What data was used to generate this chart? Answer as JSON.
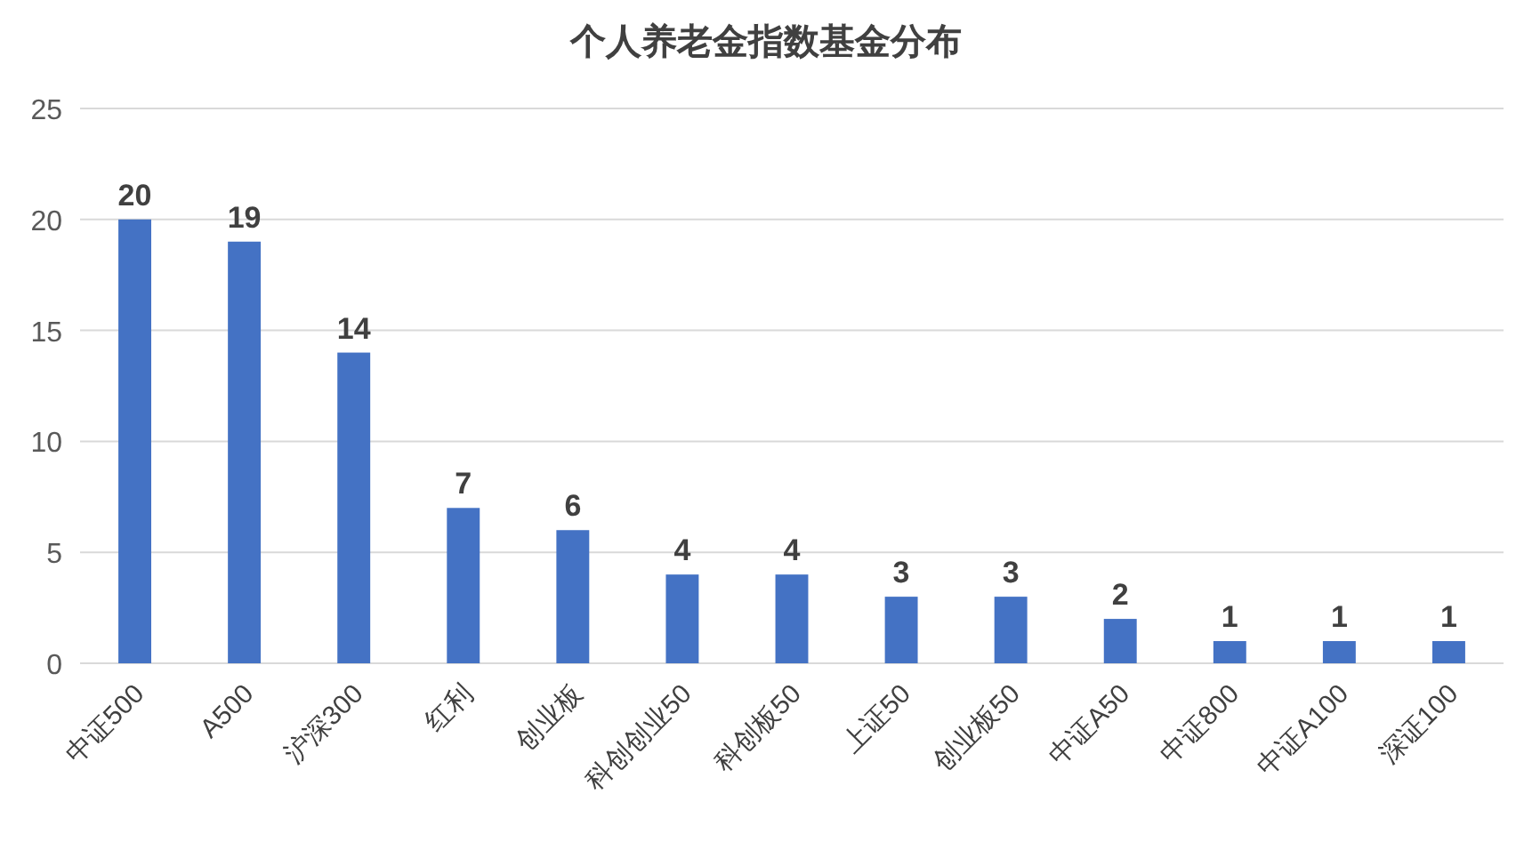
{
  "chart_data": {
    "type": "bar",
    "title": "个人养老金指数基金分布",
    "categories": [
      "中证500",
      "A500",
      "沪深300",
      "红利",
      "创业板",
      "科创创业50",
      "科创板50",
      "上证50",
      "创业板50",
      "中证A50",
      "中证800",
      "中证A100",
      "深证100"
    ],
    "values": [
      20,
      19,
      14,
      7,
      6,
      4,
      4,
      3,
      3,
      2,
      1,
      1,
      1
    ],
    "color": "#4472c4",
    "ylim": [
      0,
      25
    ],
    "yticks": [
      0,
      5,
      10,
      15,
      20,
      25
    ],
    "grid": "y",
    "data_labels": true
  }
}
